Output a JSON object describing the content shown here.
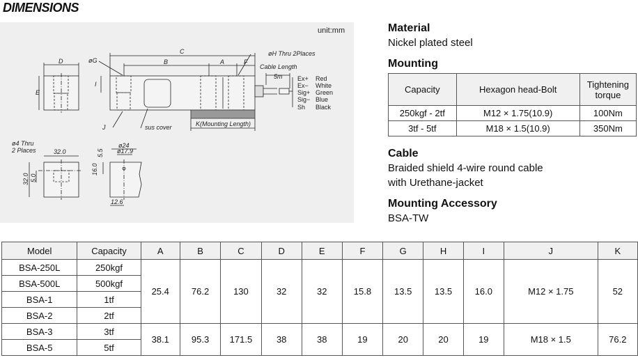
{
  "title": "DIMENSIONS",
  "diagram": {
    "unit": "unit:mm",
    "labels": {
      "C": "C",
      "B": "B",
      "A": "A",
      "F": "F",
      "D": "D",
      "E": "E",
      "I": "I",
      "G": "øG",
      "H": "øH Thru 2Places",
      "J": "J",
      "sus": "sus cover",
      "K": "K(Mounting Length)",
      "cable_length": "Cable Length",
      "cable_value": "5m",
      "thru4a": "ø4 Thru",
      "thru4b": "2 Places",
      "d32a": "32.0",
      "d32b": "32.0",
      "d5": "5.0",
      "d24": "ø24",
      "d179": "ø17.9",
      "d55": "5.5",
      "d16": "16.0",
      "d126": "12.6"
    },
    "wires": [
      {
        "signal": "Ex+",
        "color": "Red"
      },
      {
        "signal": "Ex−",
        "color": "White"
      },
      {
        "signal": "Sig+",
        "color": "Green"
      },
      {
        "signal": "Sig−",
        "color": "Blue"
      },
      {
        "signal": "Sh",
        "color": "Black"
      }
    ]
  },
  "specs": {
    "material_label": "Material",
    "material_value": "Nickel plated steel",
    "mounting_label": "Mounting",
    "mounting_table": {
      "headers": [
        "Capacity",
        "Hexagon head-Bolt",
        "Tightening torque"
      ],
      "rows": [
        [
          "250kgf - 2tf",
          "M12 × 1.75(10.9)",
          "100Nm"
        ],
        [
          "3tf - 5tf",
          "M18 × 1.5(10.9)",
          "350Nm"
        ]
      ]
    },
    "cable_label": "Cable",
    "cable_line1": "Braided shield 4-wire round cable",
    "cable_line2": "with Urethane-jacket",
    "accessory_label": "Mounting Accessory",
    "accessory_value": "BSA-TW"
  },
  "dim_table": {
    "headers": [
      "Model",
      "Capacity",
      "A",
      "B",
      "C",
      "D",
      "E",
      "F",
      "G",
      "H",
      "I",
      "J",
      "K"
    ],
    "models": [
      [
        "BSA-250L",
        "250kgf"
      ],
      [
        "BSA-500L",
        "500kgf"
      ],
      [
        "BSA-1",
        "1tf"
      ],
      [
        "BSA-2",
        "2tf"
      ],
      [
        "BSA-3",
        "3tf"
      ],
      [
        "BSA-5",
        "5tf"
      ]
    ],
    "groups": [
      [
        "25.4",
        "76.2",
        "130",
        "32",
        "32",
        "15.8",
        "13.5",
        "13.5",
        "16.0",
        "M12 × 1.75",
        "52"
      ],
      [
        "38.1",
        "95.3",
        "171.5",
        "38",
        "38",
        "19",
        "20",
        "20",
        "19",
        "M18 × 1.5",
        "76.2"
      ]
    ]
  }
}
